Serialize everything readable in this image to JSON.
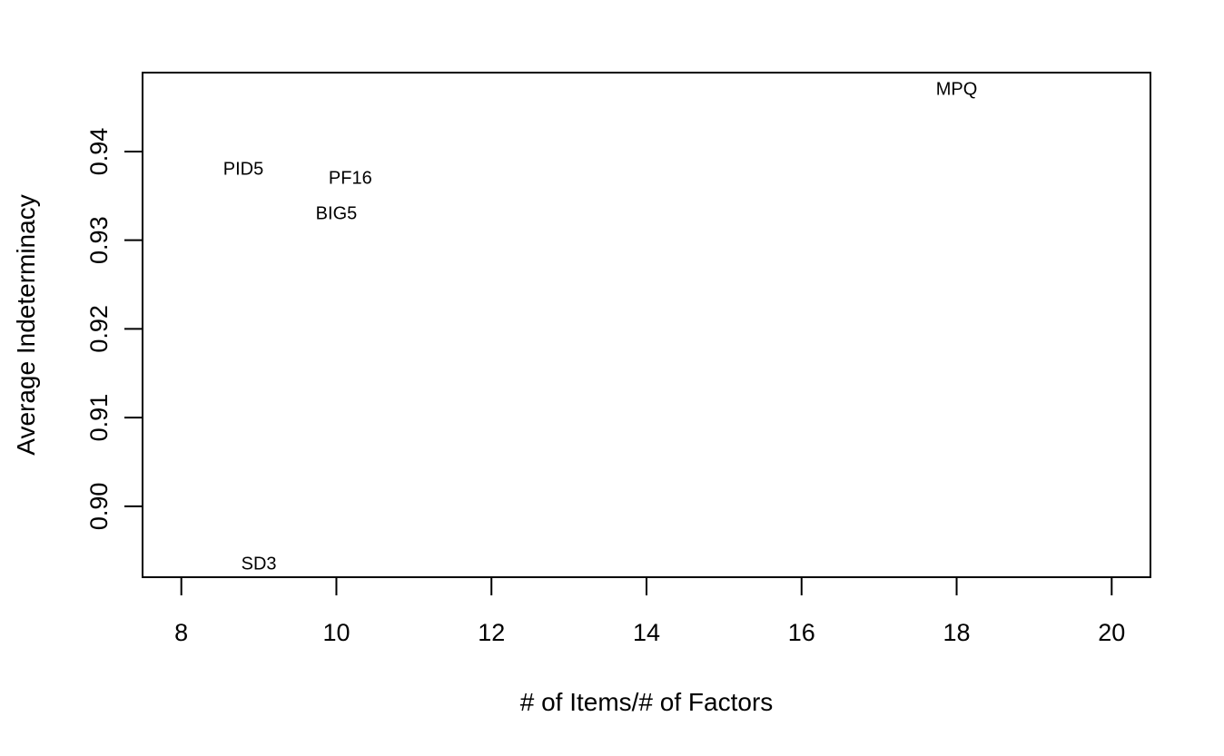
{
  "chart_data": {
    "type": "scatter",
    "title": "",
    "xlabel": "# of Items/# of Factors",
    "ylabel": "Average Indeterminacy",
    "xlim": [
      7.5,
      20.5
    ],
    "ylim": [
      0.892,
      0.9489
    ],
    "xticks": [
      8,
      10,
      12,
      14,
      16,
      18,
      20
    ],
    "yticks": [
      0.9,
      0.91,
      0.92,
      0.93,
      0.94
    ],
    "ytick_labels": [
      "0.90",
      "0.91",
      "0.92",
      "0.93",
      "0.94"
    ],
    "grid": false,
    "points": [
      {
        "label": "MPQ",
        "x": 18.0,
        "y": 0.947
      },
      {
        "label": "PID5",
        "x": 8.8,
        "y": 0.938
      },
      {
        "label": "PF16",
        "x": 10.18,
        "y": 0.937
      },
      {
        "label": "BIG5",
        "x": 10.0,
        "y": 0.933
      },
      {
        "label": "SD3",
        "x": 9.0,
        "y": 0.8935
      }
    ]
  }
}
